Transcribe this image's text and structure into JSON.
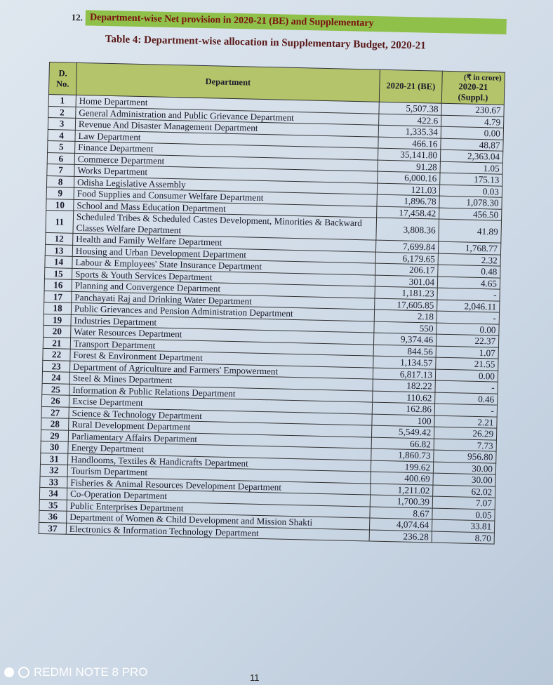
{
  "section_number": "12.",
  "section_title": "Department-wise Net provision in 2020-21 (BE) and Supplementary",
  "table_title": "Table 4: Department-wise allocation in Supplementary Budget, 2020-21",
  "unit": "(₹ in crore)",
  "columns": {
    "no": "D. No.",
    "department": "Department",
    "be": "2020-21 (BE)",
    "suppl": "2020-21 (Suppl.)"
  },
  "rows": [
    [
      "1",
      "Home Department",
      "5,507.38",
      "230.67"
    ],
    [
      "2",
      "General Administration and Public Grievance Department",
      "422.6",
      "4.79"
    ],
    [
      "3",
      "Revenue And Disaster Management Department",
      "1,335.34",
      "0.00"
    ],
    [
      "4",
      "Law Department",
      "466.16",
      "48.87"
    ],
    [
      "5",
      "Finance Department",
      "35,141.80",
      "2,363.04"
    ],
    [
      "6",
      "Commerce Department",
      "91.28",
      "1.05"
    ],
    [
      "7",
      "Works Department",
      "6,000.16",
      "175.13"
    ],
    [
      "8",
      "Odisha Legislative Assembly",
      "121.03",
      "0.03"
    ],
    [
      "9",
      "Food Supplies and Consumer Welfare Department",
      "1,896.78",
      "1,078.30"
    ],
    [
      "10",
      "School and Mass Education Department",
      "17,458.42",
      "456.50"
    ],
    [
      "11",
      "Scheduled Tribes & Scheduled Castes Development, Minorities & Backward Classes Welfare Department",
      "3,808.36",
      "41.89"
    ],
    [
      "12",
      "Health and Family Welfare Department",
      "7,699.84",
      "1,768.77"
    ],
    [
      "13",
      "Housing and Urban Development Department",
      "6,179.65",
      "2.32"
    ],
    [
      "14",
      "Labour & Employees' State Insurance Department",
      "206.17",
      "0.48"
    ],
    [
      "15",
      "Sports & Youth Services Department",
      "301.04",
      "4.65"
    ],
    [
      "16",
      "Planning and Convergence Department",
      "1,181.23",
      "-"
    ],
    [
      "17",
      "Panchayati Raj and Drinking Water Department",
      "17,605.85",
      "2,046.11"
    ],
    [
      "18",
      "Public Grievances and Pension Administration Department",
      "2.18",
      "-"
    ],
    [
      "19",
      "Industries Department",
      "550",
      "0.00"
    ],
    [
      "20",
      "Water Resources Department",
      "9,374.46",
      "22.37"
    ],
    [
      "21",
      "Transport Department",
      "844.56",
      "1.07"
    ],
    [
      "22",
      "Forest & Environment Department",
      "1,134.57",
      "21.55"
    ],
    [
      "23",
      "Department of Agriculture and Farmers' Empowerment",
      "6,817.13",
      "0.00"
    ],
    [
      "24",
      "Steel & Mines Department",
      "182.22",
      "-"
    ],
    [
      "25",
      "Information & Public Relations Department",
      "110.62",
      "0.46"
    ],
    [
      "26",
      "Excise Department",
      "162.86",
      "-"
    ],
    [
      "27",
      "Science & Technology Department",
      "100",
      "2.21"
    ],
    [
      "28",
      "Rural Development Department",
      "5,549.42",
      "26.29"
    ],
    [
      "29",
      "Parliamentary Affairs Department",
      "66.82",
      "7.73"
    ],
    [
      "30",
      "Energy Department",
      "1,860.73",
      "956.80"
    ],
    [
      "31",
      "Handlooms, Textiles & Handicrafts Department",
      "199.62",
      "30.00"
    ],
    [
      "32",
      "Tourism Department",
      "400.69",
      "30.00"
    ],
    [
      "33",
      "Fisheries & Animal Resources Development Department",
      "1,211.02",
      "62.02"
    ],
    [
      "34",
      "Co-Operation Department",
      "1,700.39",
      "7.07"
    ],
    [
      "35",
      "Public Enterprises Department",
      "8.67",
      "0.05"
    ],
    [
      "36",
      "Department of Women & Child Development and Mission Shakti",
      "4,074.64",
      "33.81"
    ],
    [
      "37",
      "Electronics & Information Technology Department",
      "236.28",
      "8.70"
    ]
  ],
  "page_number": "11",
  "camera_watermark": "REDMI NOTE 8 PRO"
}
